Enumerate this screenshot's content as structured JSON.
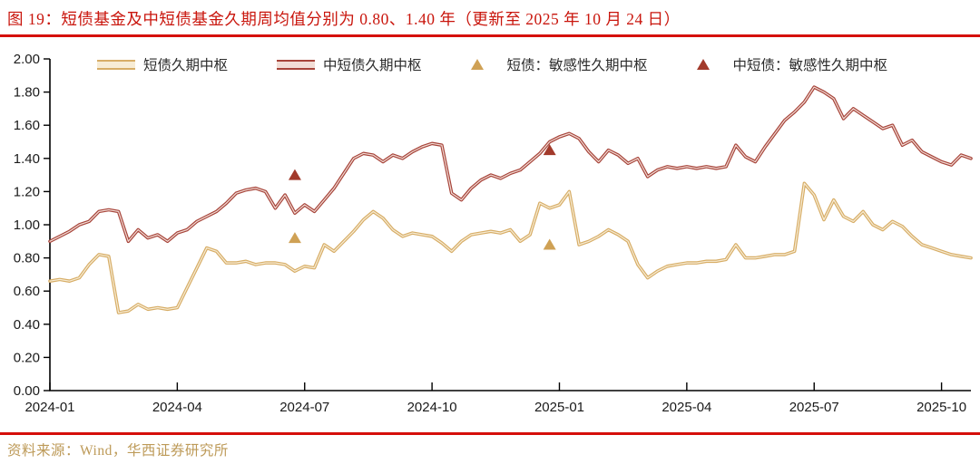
{
  "title": "图 19：短债基金及中短债基金久期周均值分别为 0.80、1.40 年（更新至 2025 年 10 月 24 日）",
  "footer": {
    "source_text": "资料来源：Wind，华西证券研究所"
  },
  "colors": {
    "title_red": "#C9150C",
    "rule_red": "#D50F0A",
    "footer_tan": "#BD9A58",
    "axis_black": "#000000"
  },
  "chart_data": {
    "type": "line",
    "title": "短债基金及中短债基金久期周均值",
    "xlabel": "",
    "ylabel": "",
    "unit": "年",
    "ylim": [
      0.0,
      2.0
    ],
    "grid": false,
    "legend_position": "top",
    "y_tick_labels": [
      "0.00",
      "0.20",
      "0.40",
      "0.60",
      "0.80",
      "1.00",
      "1.20",
      "1.40",
      "1.60",
      "1.80",
      "2.00"
    ],
    "x_tick_labels": [
      "2024-01",
      "2024-04",
      "2024-07",
      "2024-10",
      "2025-01",
      "2025-04",
      "2025-07",
      "2025-10"
    ],
    "x_tick_weeks": [
      0,
      13,
      26,
      39,
      52,
      65,
      78,
      91
    ],
    "latest_values": {
      "短债": 0.8,
      "中短债": 1.4
    },
    "series": [
      {
        "name": "短债久期中枢",
        "color": "#D7AD66",
        "inner_color": "#F7ECD5",
        "values": [
          0.66,
          0.67,
          0.66,
          0.68,
          0.76,
          0.82,
          0.81,
          0.47,
          0.48,
          0.52,
          0.49,
          0.5,
          0.49,
          0.5,
          0.62,
          0.74,
          0.86,
          0.84,
          0.77,
          0.77,
          0.78,
          0.76,
          0.77,
          0.77,
          0.76,
          0.72,
          0.75,
          0.74,
          0.88,
          0.84,
          0.9,
          0.96,
          1.03,
          1.08,
          1.04,
          0.97,
          0.93,
          0.95,
          0.94,
          0.93,
          0.89,
          0.84,
          0.9,
          0.94,
          0.95,
          0.96,
          0.95,
          0.97,
          0.9,
          0.94,
          1.13,
          1.1,
          1.12,
          1.2,
          0.88,
          0.9,
          0.93,
          0.97,
          0.94,
          0.9,
          0.76,
          0.68,
          0.72,
          0.75,
          0.76,
          0.77,
          0.77,
          0.78,
          0.78,
          0.79,
          0.88,
          0.8,
          0.8,
          0.81,
          0.82,
          0.82,
          0.84,
          1.25,
          1.18,
          1.03,
          1.15,
          1.05,
          1.02,
          1.08,
          1.0,
          0.97,
          1.02,
          0.99,
          0.93,
          0.88,
          0.86,
          0.84,
          0.82,
          0.81,
          0.8
        ]
      },
      {
        "name": "中短债久期中枢",
        "color": "#A7443A",
        "inner_color": "#F2DDD6",
        "values": [
          0.9,
          0.93,
          0.96,
          1.0,
          1.02,
          1.08,
          1.09,
          1.08,
          0.9,
          0.97,
          0.92,
          0.94,
          0.9,
          0.95,
          0.97,
          1.02,
          1.05,
          1.08,
          1.13,
          1.19,
          1.21,
          1.22,
          1.2,
          1.1,
          1.18,
          1.07,
          1.12,
          1.08,
          1.15,
          1.22,
          1.31,
          1.4,
          1.43,
          1.42,
          1.38,
          1.42,
          1.4,
          1.44,
          1.47,
          1.49,
          1.48,
          1.19,
          1.15,
          1.22,
          1.27,
          1.3,
          1.28,
          1.31,
          1.33,
          1.38,
          1.43,
          1.5,
          1.53,
          1.55,
          1.52,
          1.44,
          1.38,
          1.45,
          1.42,
          1.37,
          1.4,
          1.29,
          1.33,
          1.35,
          1.34,
          1.35,
          1.34,
          1.35,
          1.34,
          1.35,
          1.48,
          1.41,
          1.38,
          1.47,
          1.55,
          1.63,
          1.68,
          1.74,
          1.83,
          1.8,
          1.76,
          1.64,
          1.7,
          1.66,
          1.62,
          1.58,
          1.6,
          1.48,
          1.51,
          1.44,
          1.41,
          1.38,
          1.36,
          1.42,
          1.4
        ]
      }
    ],
    "markers": [
      {
        "name": "短债：敏感性久期中枢",
        "color": "#CFA155",
        "points": [
          {
            "week": 25,
            "value": 0.92
          },
          {
            "week": 51,
            "value": 0.88
          }
        ]
      },
      {
        "name": "中短债：敏感性久期中枢",
        "color": "#A23A2B",
        "points": [
          {
            "week": 25,
            "value": 1.3
          },
          {
            "week": 51,
            "value": 1.45
          }
        ]
      }
    ]
  }
}
